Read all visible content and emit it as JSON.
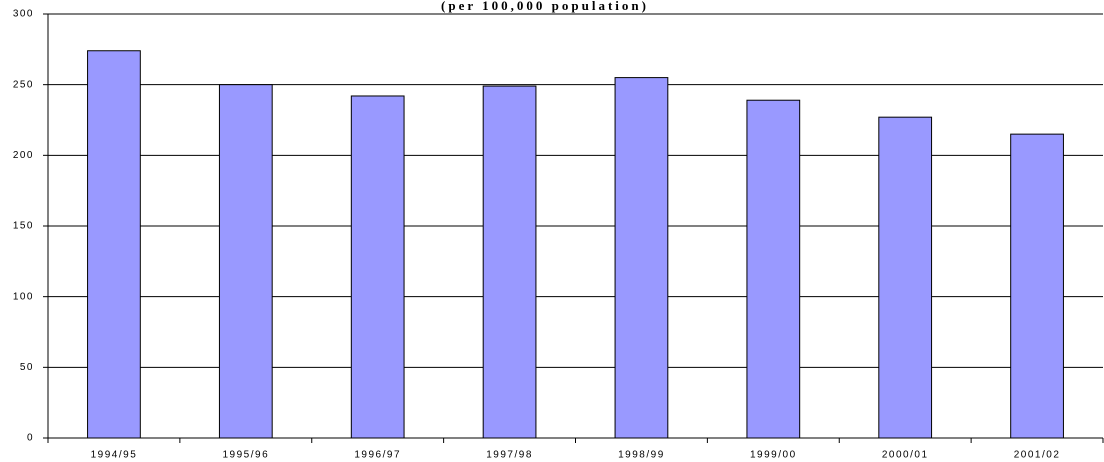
{
  "chart_data": {
    "type": "bar",
    "title": "(per 100,000 population)",
    "categories": [
      "1994/95",
      "1995/96",
      "1996/97",
      "1997/98",
      "1998/99",
      "1999/00",
      "2000/01",
      "2001/02"
    ],
    "values": [
      274,
      250,
      242,
      249,
      255,
      239,
      227,
      215
    ],
    "color": "#9999ff",
    "ylim": [
      0,
      300
    ],
    "yticks": [
      0,
      50,
      100,
      150,
      200,
      250,
      300
    ],
    "grid": true
  }
}
